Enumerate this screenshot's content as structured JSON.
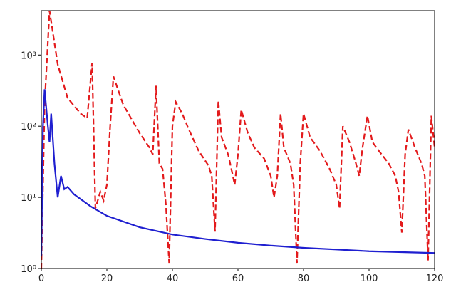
{
  "chart_data": {
    "type": "line",
    "yscale": "log",
    "xlim": [
      0,
      120
    ],
    "xticks": [
      0,
      20,
      40,
      60,
      80,
      100,
      120
    ],
    "ylim": [
      1,
      4200
    ],
    "yticks": [
      {
        "value": 1,
        "label": "10⁰"
      },
      {
        "value": 10,
        "label": "10¹"
      },
      {
        "value": 100,
        "label": "10²"
      },
      {
        "value": 1000,
        "label": "10³"
      }
    ],
    "series": [
      {
        "color": "#e31a1c",
        "linestyle": "dashed",
        "x": [
          0,
          1,
          2.5,
          5,
          8,
          12,
          14,
          15.5,
          16.5,
          18,
          19,
          20,
          21,
          22,
          25,
          30,
          33,
          34,
          35,
          36,
          37,
          38,
          39,
          40,
          41,
          43,
          45,
          48,
          51,
          52,
          53,
          54,
          55,
          57,
          58,
          59,
          60,
          61,
          63,
          65,
          68,
          70,
          71,
          72,
          73,
          74,
          76,
          77,
          78,
          79,
          80,
          82,
          85,
          88,
          90,
          91,
          92,
          94,
          96,
          97,
          98,
          99.5,
          101,
          103,
          106,
          108,
          109,
          110,
          111,
          112,
          114,
          116,
          117,
          118,
          119,
          120
        ],
        "values": [
          1,
          200,
          4200,
          740,
          250,
          150,
          130,
          780,
          7,
          12,
          9,
          15,
          100,
          500,
          200,
          80,
          50,
          40,
          370,
          30,
          25,
          8,
          1.2,
          100,
          220,
          150,
          90,
          45,
          28,
          20,
          3.3,
          230,
          70,
          40,
          25,
          15,
          40,
          170,
          80,
          50,
          35,
          20,
          10,
          20,
          150,
          50,
          30,
          15,
          1.2,
          30,
          150,
          70,
          45,
          25,
          15,
          7,
          100,
          60,
          30,
          20,
          50,
          140,
          60,
          45,
          30,
          20,
          12,
          3.2,
          40,
          90,
          50,
          30,
          20,
          1.3,
          140,
          50
        ]
      },
      {
        "color": "#1f1fd0",
        "linestyle": "solid",
        "x": [
          0,
          0.5,
          1,
          2,
          2.5,
          3,
          4,
          5,
          6,
          7,
          8,
          10,
          15,
          20,
          30,
          40,
          50,
          60,
          70,
          80,
          90,
          100,
          110,
          120
        ],
        "values": [
          1.5,
          100,
          330,
          100,
          60,
          150,
          30,
          10,
          20,
          13,
          14,
          11,
          7.5,
          5.5,
          3.8,
          3,
          2.6,
          2.3,
          2.1,
          1.95,
          1.85,
          1.75,
          1.7,
          1.65
        ]
      }
    ]
  }
}
